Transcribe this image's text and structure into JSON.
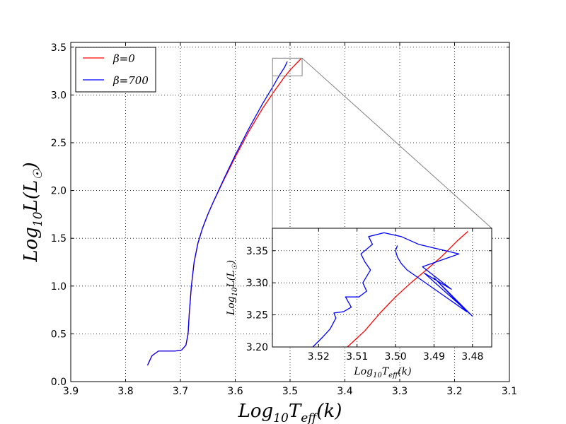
{
  "chart_data": {
    "type": "line",
    "main": {
      "xlabel": "Log10Teff(k)",
      "ylabel": "Log10L(L☉)",
      "xlim": [
        3.9,
        3.1
      ],
      "ylim": [
        0.0,
        3.55
      ],
      "xticks": [
        3.9,
        3.8,
        3.7,
        3.6,
        3.5,
        3.4,
        3.3,
        3.2,
        3.1
      ],
      "xtick_labels": [
        "3.9",
        "3.8",
        "3.7",
        "3.6",
        "3.5",
        "3.4",
        "3.3",
        "3.2",
        "3.1"
      ],
      "yticks": [
        0.0,
        0.5,
        1.0,
        1.5,
        2.0,
        2.5,
        3.0,
        3.5
      ],
      "ytick_labels": [
        "0.0",
        "0.5",
        "1.0",
        "1.5",
        "2.0",
        "2.5",
        "3.0",
        "3.5"
      ],
      "grid": true,
      "legend_position": "upper-left",
      "series": [
        {
          "name": "β=0",
          "color": "#ff0000",
          "x": [
            3.76,
            3.752,
            3.74,
            3.725,
            3.71,
            3.698,
            3.69,
            3.686,
            3.684,
            3.68,
            3.675,
            3.668,
            3.66,
            3.65,
            3.64,
            3.62,
            3.6,
            3.575,
            3.55,
            3.53,
            3.51,
            3.5,
            3.49,
            3.48
          ],
          "y": [
            0.17,
            0.27,
            0.32,
            0.32,
            0.32,
            0.33,
            0.38,
            0.5,
            0.7,
            1.0,
            1.25,
            1.45,
            1.6,
            1.75,
            1.88,
            2.12,
            2.35,
            2.62,
            2.86,
            3.03,
            3.19,
            3.26,
            3.32,
            3.38
          ]
        },
        {
          "name": "β=700",
          "color": "#0000ff",
          "x": [
            3.76,
            3.752,
            3.74,
            3.725,
            3.71,
            3.698,
            3.69,
            3.686,
            3.684,
            3.68,
            3.675,
            3.668,
            3.66,
            3.65,
            3.64,
            3.62,
            3.6,
            3.575,
            3.55,
            3.53,
            3.52,
            3.51,
            3.505
          ],
          "y": [
            0.17,
            0.27,
            0.32,
            0.32,
            0.32,
            0.33,
            0.38,
            0.5,
            0.7,
            1.0,
            1.25,
            1.45,
            1.6,
            1.75,
            1.88,
            2.13,
            2.37,
            2.65,
            2.91,
            3.1,
            3.2,
            3.29,
            3.35
          ]
        }
      ],
      "zoom_box": {
        "x": [
          3.532,
          3.478
        ],
        "y": [
          3.2,
          3.385
        ]
      }
    },
    "inset": {
      "xlabel": "Log10Teff(k)",
      "ylabel": "Log10L(L☉)",
      "xlim": [
        3.532,
        3.475
      ],
      "ylim": [
        3.2,
        3.385
      ],
      "xticks": [
        3.52,
        3.51,
        3.5,
        3.49,
        3.48
      ],
      "xtick_labels": [
        "3.52",
        "3.51",
        "3.50",
        "3.49",
        "3.48"
      ],
      "yticks": [
        3.2,
        3.25,
        3.3,
        3.35
      ],
      "ytick_labels": [
        "3.20",
        "3.25",
        "3.30",
        "3.35"
      ],
      "grid": true,
      "series": [
        {
          "name": "β=0",
          "color": "#ff0000",
          "x": [
            3.5125,
            3.508,
            3.504,
            3.5,
            3.496,
            3.492,
            3.488,
            3.484,
            3.4812
          ],
          "y": [
            3.2,
            3.225,
            3.253,
            3.278,
            3.3,
            3.32,
            3.341,
            3.365,
            3.38
          ]
        },
        {
          "name": "β=700",
          "color": "#0000ff",
          "x": [
            3.5215,
            3.519,
            3.517,
            3.5155,
            3.516,
            3.5135,
            3.5115,
            3.513,
            3.5095,
            3.5075,
            3.5085,
            3.5065,
            3.508,
            3.509,
            3.506,
            3.507,
            3.503,
            3.4985,
            3.494,
            3.4835,
            3.493,
            3.4855,
            3.4925,
            3.48,
            3.49,
            3.4815,
            3.497,
            3.4985,
            3.4995,
            3.5,
            3.4995
          ],
          "y": [
            3.2,
            3.215,
            3.228,
            3.245,
            3.253,
            3.255,
            3.262,
            3.278,
            3.278,
            3.287,
            3.3,
            3.32,
            3.333,
            3.345,
            3.36,
            3.372,
            3.378,
            3.372,
            3.36,
            3.345,
            3.325,
            3.29,
            3.315,
            3.248,
            3.308,
            3.255,
            3.32,
            3.33,
            3.34,
            3.35,
            3.358
          ]
        }
      ]
    }
  }
}
